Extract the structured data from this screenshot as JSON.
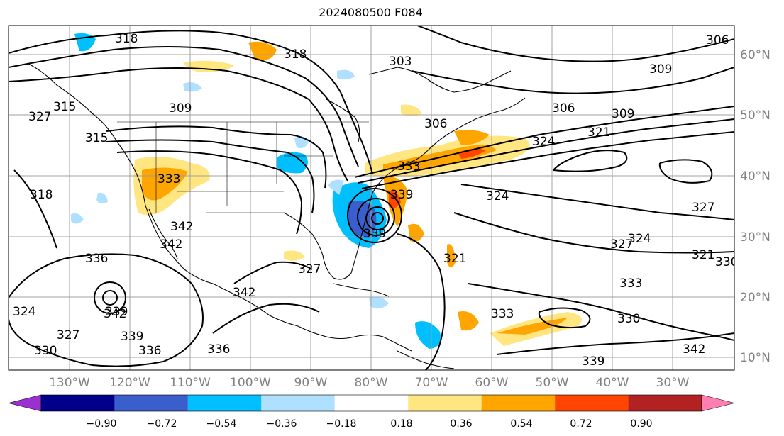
{
  "title": "2024080500 F084",
  "lon_labels": [
    "130°W",
    "120°W",
    "110°W",
    "100°W",
    "90°W",
    "80°W",
    "70°W",
    "60°W",
    "50°W",
    "40°W",
    "30°W"
  ],
  "lat_labels": [
    "60°N",
    "50°N",
    "40°N",
    "30°N",
    "20°N",
    "10°N"
  ],
  "colorbar": {
    "ticks": [
      "−0.90",
      "−0.72",
      "−0.54",
      "−0.36",
      "−0.18",
      "0.18",
      "0.36",
      "0.54",
      "0.72",
      "0.90"
    ],
    "colors": [
      "#9b30d0",
      "#00008b",
      "#3a5fcd",
      "#00bfff",
      "#b0e0ff",
      "#ffffff",
      "#ffe680",
      "#ffa500",
      "#ff4500",
      "#b22222",
      "#ff80b0"
    ]
  },
  "contour_labels": [
    "318",
    "318",
    "303",
    "306",
    "309",
    "315",
    "309",
    "306",
    "306",
    "309",
    "321",
    "324",
    "327",
    "315",
    "318",
    "333",
    "333",
    "324",
    "342",
    "336",
    "342",
    "339",
    "339",
    "339",
    "327",
    "336",
    "342",
    "339",
    "336",
    "321",
    "327",
    "324",
    "333",
    "330",
    "333",
    "327",
    "342",
    "339",
    "330",
    "324",
    "327",
    "321",
    "330",
    "342"
  ]
}
